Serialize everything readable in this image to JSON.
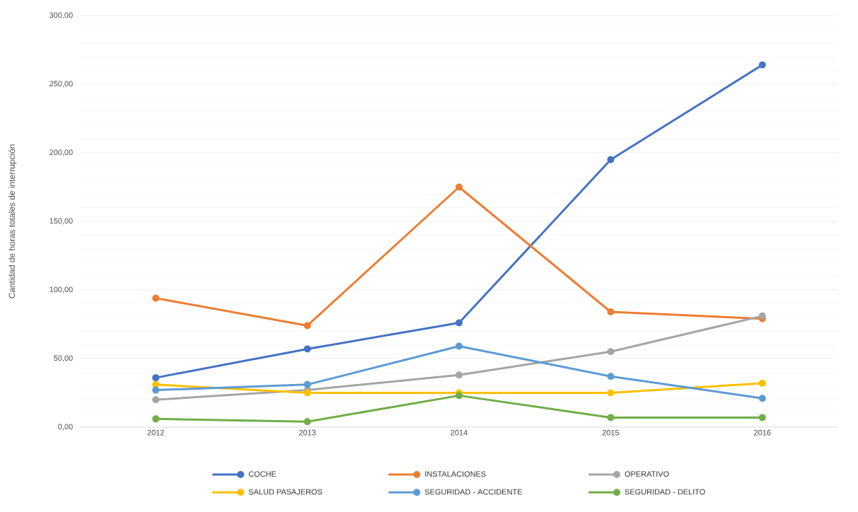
{
  "chart_data": {
    "type": "line",
    "ylabel": "Cantidad de horas totales de interrupción",
    "categories": [
      "2012",
      "2013",
      "2014",
      "2015",
      "2016"
    ],
    "series": [
      {
        "name": "COCHE",
        "color": "#4472c4",
        "values": [
          36,
          57,
          76,
          195,
          264
        ]
      },
      {
        "name": "INSTALACIONES",
        "color": "#ed7d31",
        "values": [
          94,
          74,
          175,
          84,
          79
        ]
      },
      {
        "name": "OPERATIVO",
        "color": "#a5a5a5",
        "values": [
          20,
          27,
          38,
          55,
          81
        ]
      },
      {
        "name": "SALUD PASAJEROS",
        "color": "#ffc000",
        "values": [
          31,
          25,
          25,
          25,
          32
        ]
      },
      {
        "name": "SEGURIDAD - ACCIDENTE",
        "color": "#5b9bd5",
        "values": [
          27,
          31,
          59,
          37,
          21
        ]
      },
      {
        "name": "SEGURIDAD - DELITO",
        "color": "#70ad47",
        "values": [
          6,
          4,
          23,
          7,
          7
        ]
      }
    ],
    "ylim": [
      0,
      300
    ],
    "yticks": [
      {
        "value": 0,
        "label": "0,00"
      },
      {
        "value": 50,
        "label": "50,00"
      },
      {
        "value": 100,
        "label": "100,00"
      },
      {
        "value": 150,
        "label": "150,00"
      },
      {
        "value": 200,
        "label": "200,00"
      },
      {
        "value": 250,
        "label": "250,00"
      },
      {
        "value": 300,
        "label": "300,00"
      }
    ],
    "grid": "y",
    "legend": "bottom",
    "marker": "circle",
    "line_style": "solid"
  }
}
